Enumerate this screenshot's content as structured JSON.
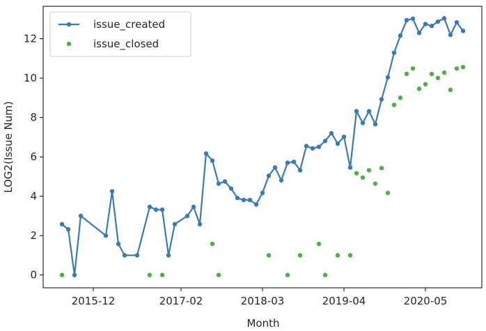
{
  "chart_data": {
    "type": "line",
    "xlabel": "Month",
    "ylabel": "LOG2(Issue Num)",
    "x_tick_labels": [
      "2015-12",
      "2017-02",
      "2018-03",
      "2019-04",
      "2020-05"
    ],
    "x_ticks": [
      "2015-12",
      "2017-02",
      "2018-03",
      "2019-04",
      "2020-05"
    ],
    "y_ticks": [
      0,
      2,
      4,
      6,
      8,
      10,
      12
    ],
    "xlim": [
      "2015-04",
      "2021-02"
    ],
    "ylim": [
      -0.65,
      13.65
    ],
    "grid": false,
    "legend_position": "top-left",
    "series": [
      {
        "name": "issue_created",
        "color": "#3a7ab4",
        "style": "line-with-markers",
        "points": [
          [
            "2015-07",
            2.58
          ],
          [
            "2015-08",
            2.32
          ],
          [
            "2015-09",
            0.0
          ],
          [
            "2015-10",
            3.0
          ],
          [
            "2016-02",
            2.0
          ],
          [
            "2016-03",
            4.25
          ],
          [
            "2016-04",
            1.58
          ],
          [
            "2016-05",
            1.0
          ],
          [
            "2016-07",
            1.0
          ],
          [
            "2016-09",
            3.46
          ],
          [
            "2016-10",
            3.32
          ],
          [
            "2016-11",
            3.32
          ],
          [
            "2016-12",
            1.0
          ],
          [
            "2017-01",
            2.58
          ],
          [
            "2017-03",
            3.0
          ],
          [
            "2017-04",
            3.46
          ],
          [
            "2017-05",
            2.58
          ],
          [
            "2017-06",
            6.17
          ],
          [
            "2017-07",
            5.81
          ],
          [
            "2017-08",
            4.64
          ],
          [
            "2017-09",
            4.75
          ],
          [
            "2017-10",
            4.39
          ],
          [
            "2017-11",
            3.91
          ],
          [
            "2017-12",
            3.81
          ],
          [
            "2018-01",
            3.81
          ],
          [
            "2018-02",
            3.58
          ],
          [
            "2018-03",
            4.17
          ],
          [
            "2018-04",
            5.04
          ],
          [
            "2018-05",
            5.46
          ],
          [
            "2018-06",
            4.81
          ],
          [
            "2018-07",
            5.7
          ],
          [
            "2018-08",
            5.75
          ],
          [
            "2018-09",
            5.32
          ],
          [
            "2018-10",
            6.55
          ],
          [
            "2018-11",
            6.43
          ],
          [
            "2018-12",
            6.51
          ],
          [
            "2019-01",
            6.81
          ],
          [
            "2019-02",
            7.2
          ],
          [
            "2019-03",
            6.67
          ],
          [
            "2019-04",
            7.02
          ],
          [
            "2019-05",
            5.46
          ],
          [
            "2019-06",
            8.32
          ],
          [
            "2019-07",
            7.72
          ],
          [
            "2019-08",
            8.32
          ],
          [
            "2019-09",
            7.66
          ],
          [
            "2019-10",
            8.92
          ],
          [
            "2019-11",
            10.04
          ],
          [
            "2019-12",
            11.29
          ],
          [
            "2020-01",
            12.16
          ],
          [
            "2020-02",
            12.94
          ],
          [
            "2020-03",
            13.02
          ],
          [
            "2020-04",
            12.3
          ],
          [
            "2020-05",
            12.75
          ],
          [
            "2020-06",
            12.65
          ],
          [
            "2020-07",
            12.87
          ],
          [
            "2020-08",
            13.04
          ],
          [
            "2020-09",
            12.2
          ],
          [
            "2020-10",
            12.83
          ],
          [
            "2020-11",
            12.4
          ]
        ]
      },
      {
        "name": "issue_closed",
        "color": "#4daf4a",
        "style": "markers",
        "points": [
          [
            "2015-07",
            0.0
          ],
          [
            "2016-09",
            0.0
          ],
          [
            "2016-11",
            0.0
          ],
          [
            "2017-07",
            1.58
          ],
          [
            "2017-08",
            0.0
          ],
          [
            "2018-04",
            1.0
          ],
          [
            "2018-07",
            0.0
          ],
          [
            "2018-09",
            1.0
          ],
          [
            "2018-12",
            1.58
          ],
          [
            "2019-01",
            0.0
          ],
          [
            "2019-03",
            1.0
          ],
          [
            "2019-05",
            1.0
          ],
          [
            "2019-06",
            5.17
          ],
          [
            "2019-07",
            4.95
          ],
          [
            "2019-08",
            5.32
          ],
          [
            "2019-09",
            4.64
          ],
          [
            "2019-10",
            5.43
          ],
          [
            "2019-11",
            4.17
          ],
          [
            "2019-12",
            8.64
          ],
          [
            "2020-01",
            9.0
          ],
          [
            "2020-02",
            10.22
          ],
          [
            "2020-03",
            10.49
          ],
          [
            "2020-04",
            9.46
          ],
          [
            "2020-05",
            9.69
          ],
          [
            "2020-06",
            10.21
          ],
          [
            "2020-07",
            10.01
          ],
          [
            "2020-08",
            10.28
          ],
          [
            "2020-09",
            9.4
          ],
          [
            "2020-10",
            10.49
          ],
          [
            "2020-11",
            10.56
          ]
        ]
      }
    ]
  }
}
